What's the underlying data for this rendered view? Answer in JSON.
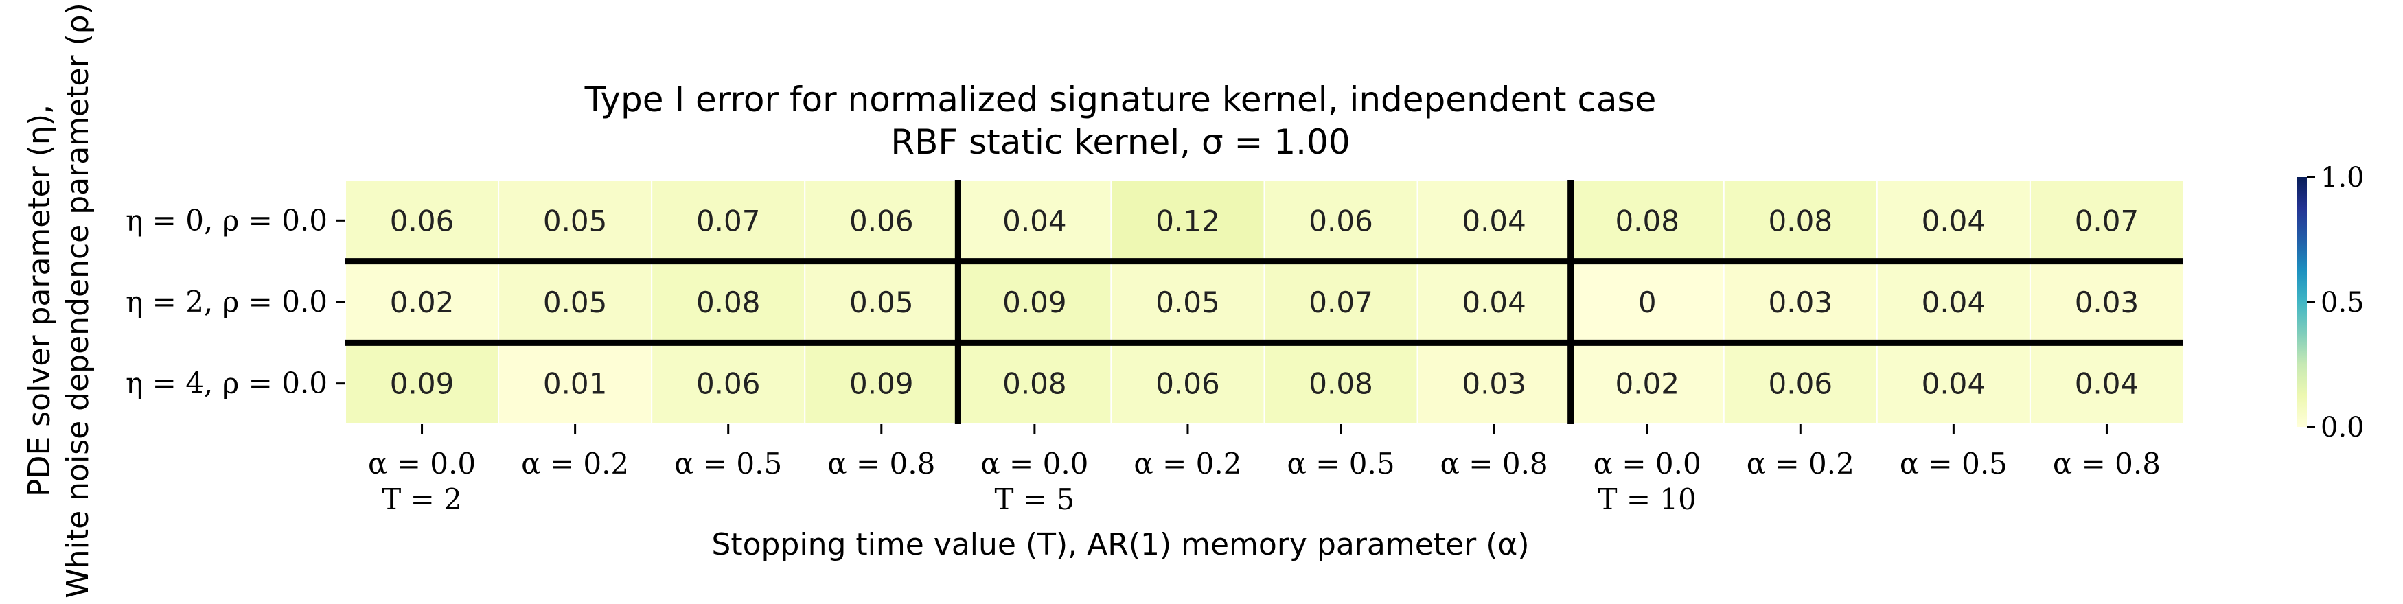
{
  "chart_data": {
    "type": "heatmap",
    "title": "Type I error for normalized signature kernel, independent case",
    "subtitle": "RBF static kernel, σ = 1.00",
    "xlabel": "Stopping time value (T), AR(1) memory parameter (α)",
    "ylabel_line1": "PDE solver parameter (η),",
    "ylabel_line2": "White noise dependence parameter (ρ)",
    "x_tick_labels": [
      "α = 0.0",
      "α = 0.2",
      "α = 0.5",
      "α = 0.8",
      "α = 0.0",
      "α = 0.2",
      "α = 0.5",
      "α = 0.8",
      "α = 0.0",
      "α = 0.2",
      "α = 0.5",
      "α = 0.8"
    ],
    "x_group_labels": [
      "T = 2",
      "T = 5",
      "T = 10"
    ],
    "y_tick_labels": [
      "η = 0, ρ = 0.0",
      "η = 2, ρ = 0.0",
      "η = 4, ρ = 0.0"
    ],
    "values": [
      [
        0.06,
        0.05,
        0.07,
        0.06,
        0.04,
        0.12,
        0.06,
        0.04,
        0.08,
        0.08,
        0.04,
        0.07
      ],
      [
        0.02,
        0.05,
        0.08,
        0.05,
        0.09,
        0.05,
        0.07,
        0.04,
        0,
        0.03,
        0.04,
        0.03
      ],
      [
        0.09,
        0.01,
        0.06,
        0.09,
        0.08,
        0.06,
        0.08,
        0.03,
        0.02,
        0.06,
        0.04,
        0.04
      ]
    ],
    "value_labels": [
      [
        "0.06",
        "0.05",
        "0.07",
        "0.06",
        "0.04",
        "0.12",
        "0.06",
        "0.04",
        "0.08",
        "0.08",
        "0.04",
        "0.07"
      ],
      [
        "0.02",
        "0.05",
        "0.08",
        "0.05",
        "0.09",
        "0.05",
        "0.07",
        "0.04",
        "0",
        "0.03",
        "0.04",
        "0.03"
      ],
      [
        "0.09",
        "0.01",
        "0.06",
        "0.09",
        "0.08",
        "0.06",
        "0.08",
        "0.03",
        "0.02",
        "0.06",
        "0.04",
        "0.04"
      ]
    ],
    "colormap": "YlGnBu",
    "vmin": 0.0,
    "vmax": 1.0,
    "colorbar_ticks": [
      "0.0",
      "0.5",
      "1.0"
    ],
    "colors": {
      "low": "#ffffd9",
      "high": "#081d58",
      "separator": "#000000"
    }
  }
}
